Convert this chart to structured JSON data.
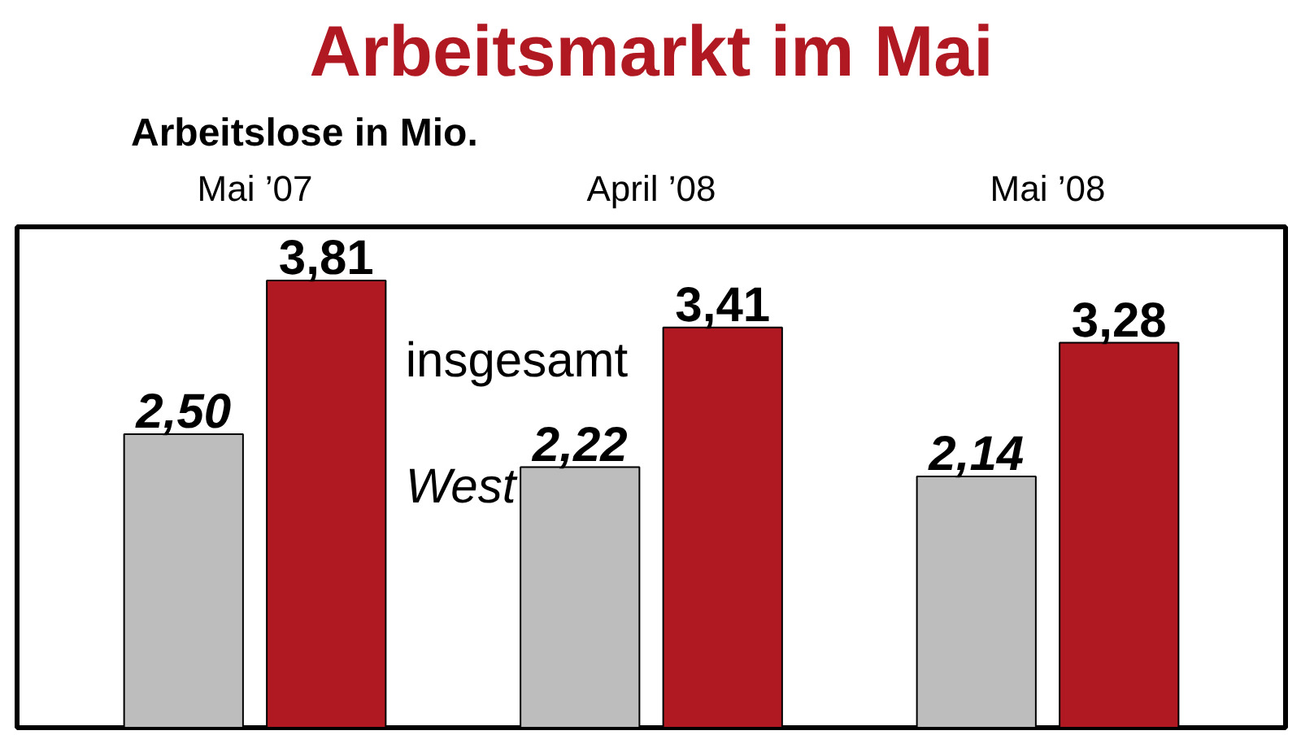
{
  "chart_data": {
    "type": "bar",
    "title": "Arbeitsmarkt im Mai",
    "subtitle": "Arbeitslose in Mio.",
    "categories": [
      "Mai ’07",
      "April ’08",
      "Mai ’08"
    ],
    "series": [
      {
        "name": "West",
        "color": "#bdbdbd",
        "values": [
          2.5,
          2.22,
          2.14
        ],
        "value_labels": [
          "2,50",
          "2,22",
          "2,14"
        ]
      },
      {
        "name": "insgesamt",
        "color": "#b01822",
        "values": [
          3.81,
          3.41,
          3.28
        ],
        "value_labels": [
          "3,81",
          "3,41",
          "3,28"
        ]
      }
    ],
    "grid": false
  }
}
